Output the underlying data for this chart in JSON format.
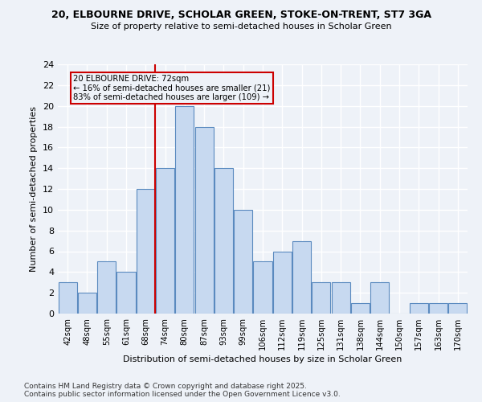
{
  "title_line1": "20, ELBOURNE DRIVE, SCHOLAR GREEN, STOKE-ON-TRENT, ST7 3GA",
  "title_line2": "Size of property relative to semi-detached houses in Scholar Green",
  "xlabel": "Distribution of semi-detached houses by size in Scholar Green",
  "ylabel": "Number of semi-detached properties",
  "categories": [
    "42sqm",
    "48sqm",
    "55sqm",
    "61sqm",
    "68sqm",
    "74sqm",
    "80sqm",
    "87sqm",
    "93sqm",
    "99sqm",
    "106sqm",
    "112sqm",
    "119sqm",
    "125sqm",
    "131sqm",
    "138sqm",
    "144sqm",
    "150sqm",
    "157sqm",
    "163sqm",
    "170sqm"
  ],
  "values": [
    3,
    2,
    5,
    4,
    12,
    14,
    20,
    18,
    14,
    10,
    5,
    6,
    7,
    3,
    3,
    1,
    3,
    0,
    1,
    1,
    1
  ],
  "bar_color": "#c7d9f0",
  "bar_edge_color": "#5a8abf",
  "highlight_line_label": "20 ELBOURNE DRIVE: 72sqm",
  "annotation_line2": "← 16% of semi-detached houses are smaller (21)",
  "annotation_line3": "83% of semi-detached houses are larger (109) →",
  "red_color": "#cc0000",
  "ylim": [
    0,
    24
  ],
  "yticks": [
    0,
    2,
    4,
    6,
    8,
    10,
    12,
    14,
    16,
    18,
    20,
    22,
    24
  ],
  "bg_color": "#eef2f8",
  "grid_color": "#ffffff",
  "footer_line1": "Contains HM Land Registry data © Crown copyright and database right 2025.",
  "footer_line2": "Contains public sector information licensed under the Open Government Licence v3.0."
}
